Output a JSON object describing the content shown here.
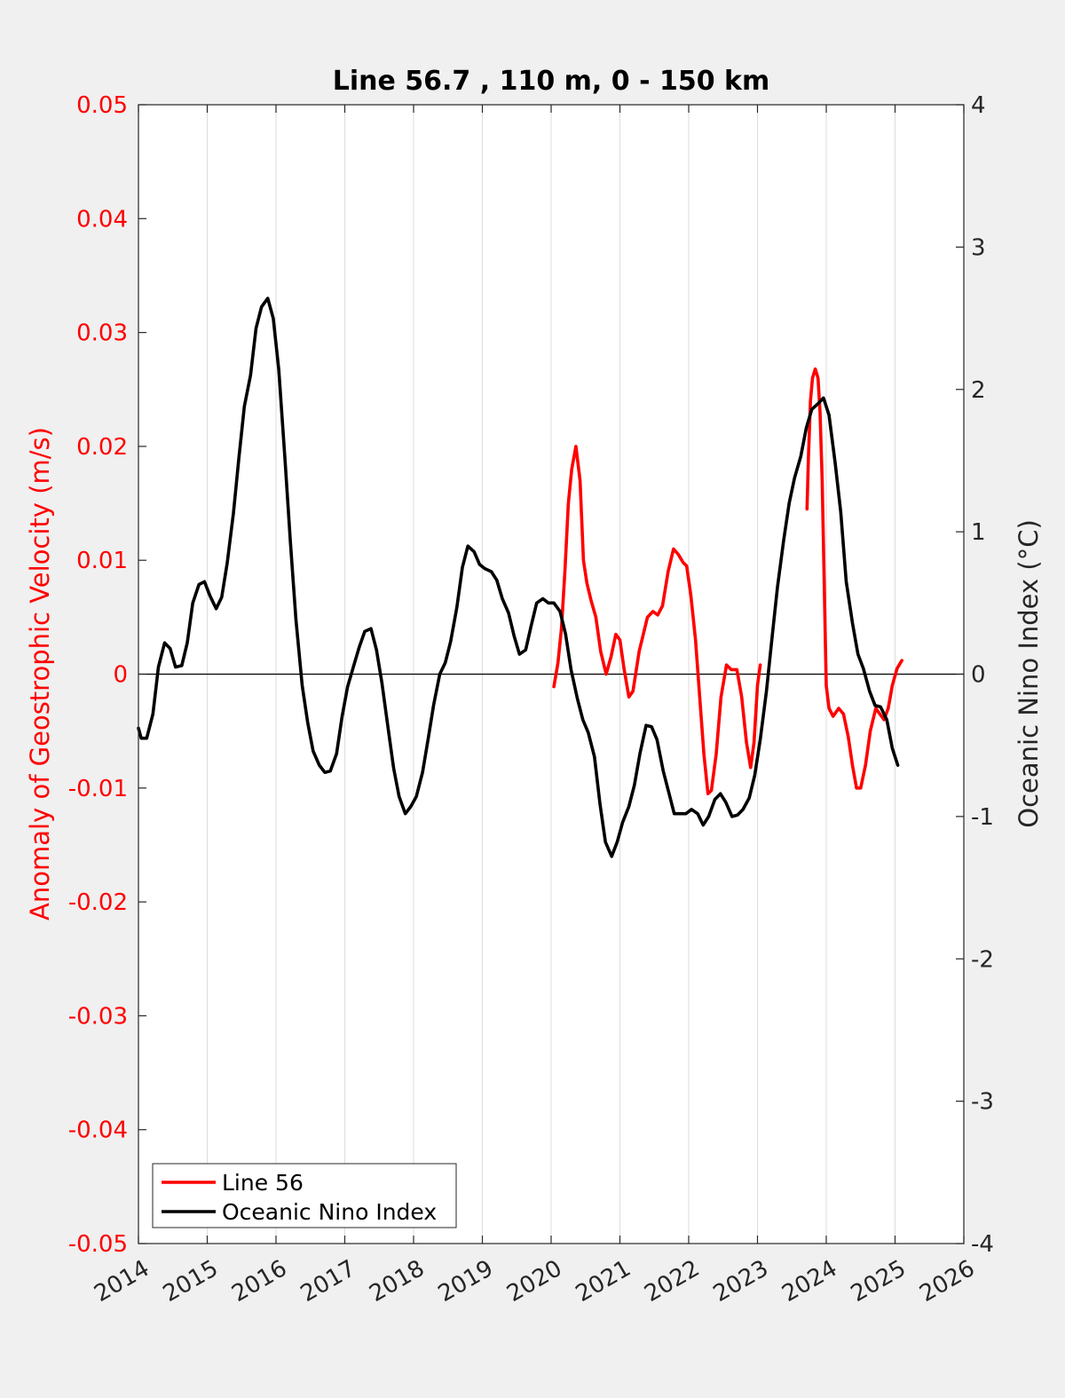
{
  "colors": {
    "background": "#f0f0f0",
    "plot_bg": "#ffffff",
    "line56": "#ff0000",
    "oni": "#000000",
    "grid": "#dcdcdc",
    "left_axis": "#ff0000",
    "right_axis": "#262626"
  },
  "chart_data": {
    "type": "line",
    "title": "Line 56.7 , 110 m, 0 - 150 km",
    "xlabel": "",
    "ylabel_left": "Anomaly of Geostrophic Velocity (m/s)",
    "ylabel_right": "Oceanic Nino Index (°C)",
    "xlim": [
      2014,
      2026
    ],
    "ylim_left": [
      -0.05,
      0.05
    ],
    "ylim_right": [
      -4,
      4
    ],
    "x_ticks": [
      "2014",
      "2015",
      "2016",
      "2017",
      "2018",
      "2019",
      "2020",
      "2021",
      "2022",
      "2023",
      "2024",
      "2025",
      "2026"
    ],
    "y_ticks_left": [
      "0.05",
      "0.04",
      "0.03",
      "0.02",
      "0.01",
      "0",
      "-0.01",
      "-0.02",
      "-0.03",
      "-0.04",
      "-0.05"
    ],
    "y_ticks_right": [
      "4",
      "3",
      "2",
      "1",
      "0",
      "-1",
      "-2",
      "-3",
      "-4"
    ],
    "x_grid": true,
    "y_grid": false,
    "zero_line": true,
    "legend": {
      "position": "bottom-left",
      "entries": [
        "Line 56",
        "Oceanic Nino Index"
      ]
    },
    "series": [
      {
        "name": "Line 56",
        "axis": "left",
        "color": "#ff0000",
        "segments": [
          [
            [
              2020.04,
              -0.0011
            ],
            [
              2020.1,
              0.001
            ],
            [
              2020.15,
              0.004
            ],
            [
              2020.2,
              0.009
            ],
            [
              2020.25,
              0.015
            ],
            [
              2020.3,
              0.018
            ],
            [
              2020.36,
              0.02
            ],
            [
              2020.42,
              0.017
            ],
            [
              2020.47,
              0.01
            ],
            [
              2020.52,
              0.008
            ],
            [
              2020.58,
              0.0065
            ],
            [
              2020.65,
              0.005
            ],
            [
              2020.72,
              0.002
            ],
            [
              2020.8,
              0.0
            ],
            [
              2020.87,
              0.0015
            ],
            [
              2020.94,
              0.0035
            ],
            [
              2021.0,
              0.003
            ],
            [
              2021.06,
              0.0005
            ],
            [
              2021.13,
              -0.002
            ],
            [
              2021.19,
              -0.0015
            ],
            [
              2021.28,
              0.002
            ],
            [
              2021.4,
              0.005
            ],
            [
              2021.48,
              0.0055
            ],
            [
              2021.55,
              0.0052
            ],
            [
              2021.62,
              0.006
            ],
            [
              2021.7,
              0.009
            ],
            [
              2021.78,
              0.011
            ],
            [
              2021.85,
              0.0105
            ],
            [
              2021.92,
              0.0098
            ],
            [
              2021.97,
              0.0095
            ],
            [
              2022.03,
              0.007
            ],
            [
              2022.1,
              0.003
            ],
            [
              2022.16,
              -0.002
            ],
            [
              2022.22,
              -0.007
            ],
            [
              2022.28,
              -0.0105
            ],
            [
              2022.33,
              -0.0102
            ],
            [
              2022.4,
              -0.007
            ],
            [
              2022.47,
              -0.002
            ],
            [
              2022.55,
              0.0008
            ],
            [
              2022.62,
              0.0004
            ],
            [
              2022.7,
              0.0004
            ],
            [
              2022.77,
              -0.002
            ],
            [
              2022.84,
              -0.006
            ],
            [
              2022.9,
              -0.0082
            ],
            [
              2022.95,
              -0.006
            ],
            [
              2023.0,
              -0.001
            ],
            [
              2023.04,
              0.0008
            ]
          ],
          [
            [
              2023.72,
              0.0145
            ],
            [
              2023.74,
              0.019
            ],
            [
              2023.77,
              0.024
            ],
            [
              2023.8,
              0.026
            ],
            [
              2023.84,
              0.0268
            ],
            [
              2023.88,
              0.026
            ],
            [
              2023.91,
              0.023
            ],
            [
              2023.94,
              0.017
            ],
            [
              2023.97,
              0.008
            ],
            [
              2023.99,
              0.002
            ],
            [
              2024.0,
              -0.001
            ],
            [
              2024.04,
              -0.003
            ],
            [
              2024.1,
              -0.0037
            ],
            [
              2024.18,
              -0.003
            ],
            [
              2024.25,
              -0.0035
            ],
            [
              2024.32,
              -0.0055
            ],
            [
              2024.38,
              -0.008
            ],
            [
              2024.44,
              -0.01
            ],
            [
              2024.5,
              -0.01
            ],
            [
              2024.57,
              -0.008
            ],
            [
              2024.64,
              -0.005
            ],
            [
              2024.72,
              -0.003
            ],
            [
              2024.78,
              -0.0035
            ],
            [
              2024.84,
              -0.004
            ],
            [
              2024.9,
              -0.003
            ],
            [
              2024.96,
              -0.001
            ],
            [
              2025.03,
              0.0005
            ],
            [
              2025.1,
              0.0012
            ]
          ]
        ]
      },
      {
        "name": "Oceanic Nino Index",
        "axis": "right",
        "color": "#000000",
        "points": [
          [
            2014.0,
            -0.38
          ],
          [
            2014.04,
            -0.45
          ],
          [
            2014.12,
            -0.45
          ],
          [
            2014.21,
            -0.28
          ],
          [
            2014.29,
            0.05
          ],
          [
            2014.38,
            0.22
          ],
          [
            2014.46,
            0.18
          ],
          [
            2014.54,
            0.05
          ],
          [
            2014.63,
            0.06
          ],
          [
            2014.71,
            0.22
          ],
          [
            2014.79,
            0.5
          ],
          [
            2014.88,
            0.63
          ],
          [
            2014.96,
            0.65
          ],
          [
            2015.04,
            0.55
          ],
          [
            2015.13,
            0.46
          ],
          [
            2015.21,
            0.54
          ],
          [
            2015.29,
            0.78
          ],
          [
            2015.38,
            1.13
          ],
          [
            2015.46,
            1.52
          ],
          [
            2015.54,
            1.88
          ],
          [
            2015.63,
            2.1
          ],
          [
            2015.71,
            2.43
          ],
          [
            2015.79,
            2.58
          ],
          [
            2015.88,
            2.64
          ],
          [
            2015.96,
            2.5
          ],
          [
            2016.04,
            2.14
          ],
          [
            2016.13,
            1.51
          ],
          [
            2016.21,
            0.92
          ],
          [
            2016.29,
            0.38
          ],
          [
            2016.38,
            -0.08
          ],
          [
            2016.46,
            -0.34
          ],
          [
            2016.54,
            -0.54
          ],
          [
            2016.63,
            -0.64
          ],
          [
            2016.71,
            -0.69
          ],
          [
            2016.79,
            -0.68
          ],
          [
            2016.88,
            -0.56
          ],
          [
            2016.96,
            -0.3
          ],
          [
            2017.04,
            -0.09
          ],
          [
            2017.13,
            0.06
          ],
          [
            2017.21,
            0.19
          ],
          [
            2017.29,
            0.3
          ],
          [
            2017.38,
            0.32
          ],
          [
            2017.46,
            0.17
          ],
          [
            2017.54,
            -0.06
          ],
          [
            2017.63,
            -0.38
          ],
          [
            2017.71,
            -0.66
          ],
          [
            2017.79,
            -0.86
          ],
          [
            2017.88,
            -0.98
          ],
          [
            2017.96,
            -0.93
          ],
          [
            2018.04,
            -0.86
          ],
          [
            2018.13,
            -0.69
          ],
          [
            2018.21,
            -0.46
          ],
          [
            2018.29,
            -0.22
          ],
          [
            2018.38,
            0.0
          ],
          [
            2018.46,
            0.08
          ],
          [
            2018.54,
            0.23
          ],
          [
            2018.63,
            0.47
          ],
          [
            2018.71,
            0.75
          ],
          [
            2018.79,
            0.9
          ],
          [
            2018.88,
            0.86
          ],
          [
            2018.96,
            0.77
          ],
          [
            2019.04,
            0.74
          ],
          [
            2019.13,
            0.72
          ],
          [
            2019.21,
            0.66
          ],
          [
            2019.29,
            0.53
          ],
          [
            2019.38,
            0.43
          ],
          [
            2019.46,
            0.27
          ],
          [
            2019.54,
            0.14
          ],
          [
            2019.63,
            0.17
          ],
          [
            2019.71,
            0.34
          ],
          [
            2019.79,
            0.5
          ],
          [
            2019.88,
            0.53
          ],
          [
            2019.96,
            0.5
          ],
          [
            2020.04,
            0.5
          ],
          [
            2020.13,
            0.44
          ],
          [
            2020.21,
            0.28
          ],
          [
            2020.29,
            0.03
          ],
          [
            2020.38,
            -0.17
          ],
          [
            2020.46,
            -0.32
          ],
          [
            2020.54,
            -0.41
          ],
          [
            2020.63,
            -0.58
          ],
          [
            2020.71,
            -0.91
          ],
          [
            2020.79,
            -1.18
          ],
          [
            2020.88,
            -1.28
          ],
          [
            2020.96,
            -1.18
          ],
          [
            2021.04,
            -1.04
          ],
          [
            2021.13,
            -0.93
          ],
          [
            2021.21,
            -0.78
          ],
          [
            2021.29,
            -0.56
          ],
          [
            2021.38,
            -0.36
          ],
          [
            2021.46,
            -0.37
          ],
          [
            2021.54,
            -0.46
          ],
          [
            2021.63,
            -0.68
          ],
          [
            2021.71,
            -0.83
          ],
          [
            2021.79,
            -0.98
          ],
          [
            2021.88,
            -0.98
          ],
          [
            2021.96,
            -0.98
          ],
          [
            2022.04,
            -0.95
          ],
          [
            2022.13,
            -0.98
          ],
          [
            2022.21,
            -1.06
          ],
          [
            2022.29,
            -1.0
          ],
          [
            2022.38,
            -0.88
          ],
          [
            2022.46,
            -0.84
          ],
          [
            2022.54,
            -0.9
          ],
          [
            2022.63,
            -1.0
          ],
          [
            2022.71,
            -0.99
          ],
          [
            2022.79,
            -0.95
          ],
          [
            2022.88,
            -0.87
          ],
          [
            2022.96,
            -0.71
          ],
          [
            2023.04,
            -0.46
          ],
          [
            2023.13,
            -0.12
          ],
          [
            2023.21,
            0.25
          ],
          [
            2023.29,
            0.61
          ],
          [
            2023.38,
            0.94
          ],
          [
            2023.46,
            1.2
          ],
          [
            2023.54,
            1.38
          ],
          [
            2023.63,
            1.53
          ],
          [
            2023.71,
            1.73
          ],
          [
            2023.79,
            1.86
          ],
          [
            2023.88,
            1.9
          ],
          [
            2023.96,
            1.94
          ],
          [
            2024.04,
            1.82
          ],
          [
            2024.13,
            1.48
          ],
          [
            2024.21,
            1.14
          ],
          [
            2024.29,
            0.65
          ],
          [
            2024.38,
            0.36
          ],
          [
            2024.46,
            0.14
          ],
          [
            2024.54,
            0.04
          ],
          [
            2024.63,
            -0.12
          ],
          [
            2024.71,
            -0.22
          ],
          [
            2024.79,
            -0.23
          ],
          [
            2024.88,
            -0.32
          ],
          [
            2024.96,
            -0.52
          ],
          [
            2025.04,
            -0.64
          ]
        ]
      }
    ]
  }
}
